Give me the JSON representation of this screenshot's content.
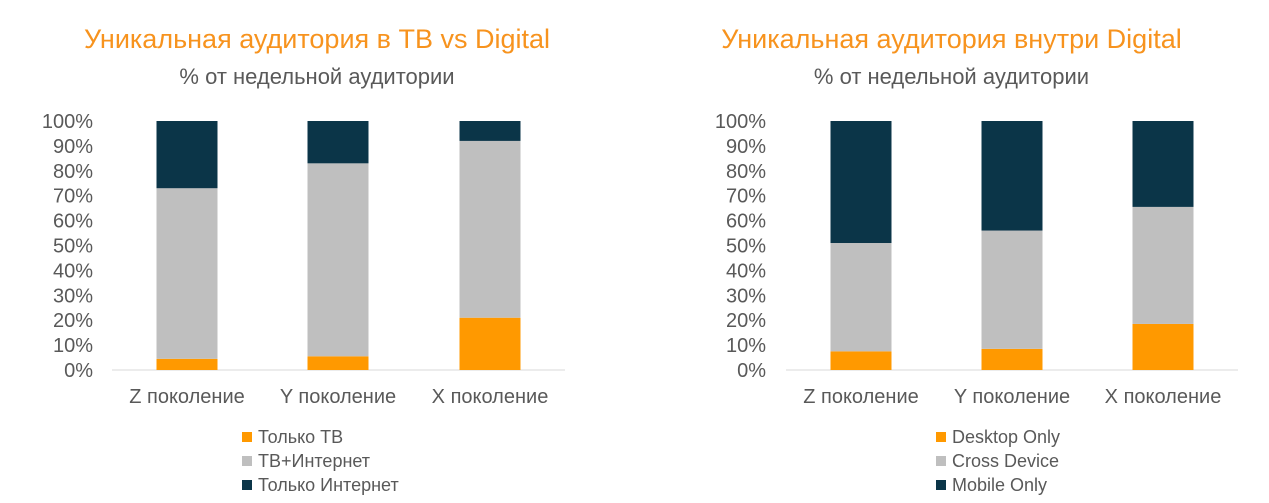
{
  "colors": {
    "title": "#f7931e",
    "text": "#595959",
    "orange": "#ff9900",
    "grey": "#bfbfbf",
    "navy": "#0b3548"
  },
  "chart_data": [
    {
      "type": "bar",
      "stacked": true,
      "title": "Уникальная аудитория в ТВ vs Digital",
      "subtitle": "% от недельной аудитории",
      "categories": [
        "Z поколение",
        "Y поколение",
        "X поколение"
      ],
      "y_ticks": [
        "0%",
        "10%",
        "20%",
        "30%",
        "40%",
        "50%",
        "60%",
        "70%",
        "80%",
        "90%",
        "100%"
      ],
      "ylim": [
        0,
        100
      ],
      "legend_position": "bottom",
      "grid": false,
      "series": [
        {
          "name": "Только ТВ",
          "color": "#ff9900",
          "values": [
            4.5,
            5.5,
            21
          ]
        },
        {
          "name": "ТВ+Интернет",
          "color": "#bfbfbf",
          "values": [
            68.5,
            77.5,
            71
          ]
        },
        {
          "name": "Только Интернет",
          "color": "#0b3548",
          "values": [
            27,
            17,
            8
          ]
        }
      ]
    },
    {
      "type": "bar",
      "stacked": true,
      "title": "Уникальная аудитория внутри Digital",
      "subtitle": "% от недельной аудитории",
      "categories": [
        "Z поколение",
        "Y поколение",
        "X поколение"
      ],
      "y_ticks": [
        "0%",
        "10%",
        "20%",
        "30%",
        "40%",
        "50%",
        "60%",
        "70%",
        "80%",
        "90%",
        "100%"
      ],
      "ylim": [
        0,
        100
      ],
      "legend_position": "bottom",
      "grid": false,
      "series": [
        {
          "name": "Desktop Only",
          "color": "#ff9900",
          "values": [
            7.5,
            8.5,
            18.5
          ]
        },
        {
          "name": "Cross Device",
          "color": "#bfbfbf",
          "values": [
            43.5,
            47.5,
            47
          ]
        },
        {
          "name": "Mobile Only",
          "color": "#0b3548",
          "values": [
            49,
            44,
            34.5
          ]
        }
      ]
    }
  ]
}
